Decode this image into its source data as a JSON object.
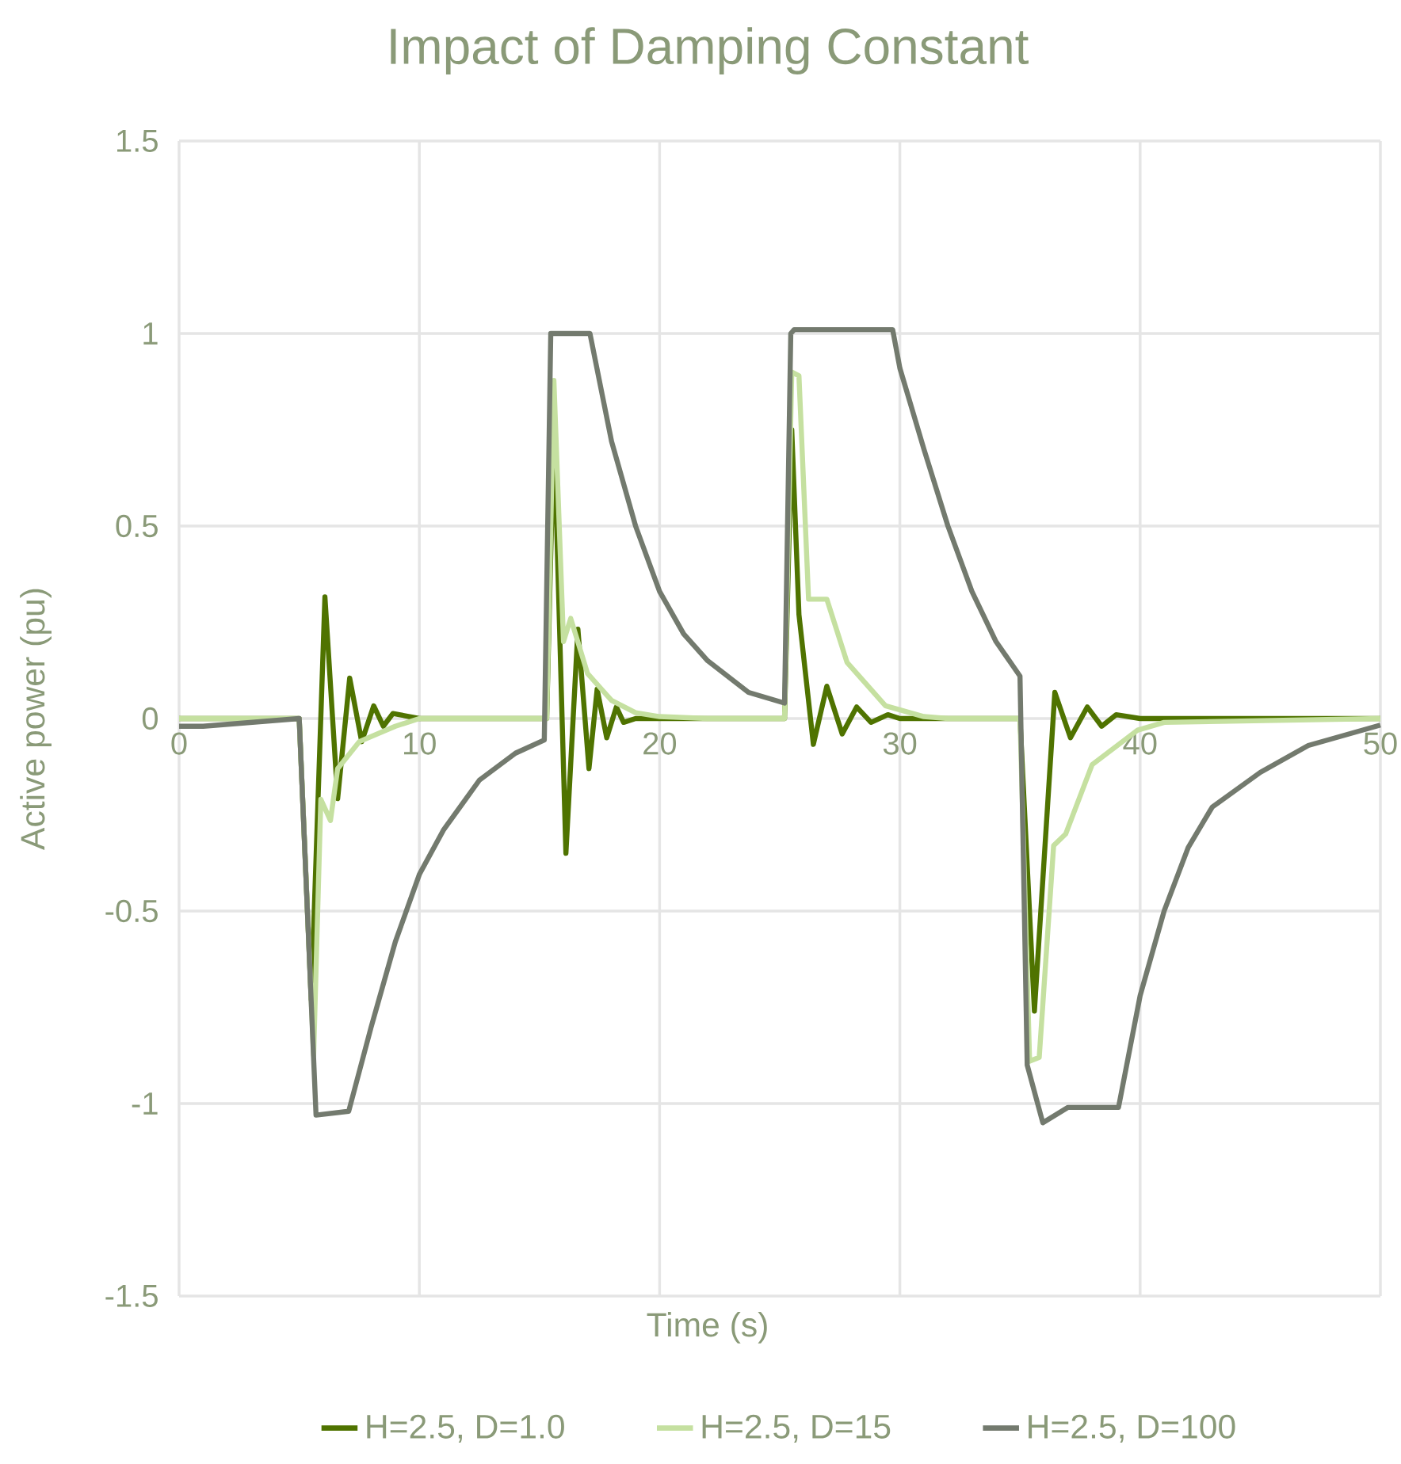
{
  "chart_data": {
    "type": "line",
    "title": "Impact of Damping Constant",
    "xlabel": "Time (s)",
    "ylabel": "Active power (pu)",
    "xlim": [
      0,
      50
    ],
    "ylim": [
      -1.5,
      1.5
    ],
    "xticks": [
      0,
      10,
      20,
      30,
      40,
      50
    ],
    "yticks": [
      -1.5,
      -1,
      -0.5,
      0,
      0.5,
      1,
      1.5
    ],
    "grid": true,
    "legend": "bottom",
    "marker": "none",
    "line_style": "solid",
    "series": [
      {
        "name": "H=2.5, D=1.0",
        "color": "#4f7300",
        "x": [
          0,
          5.0,
          5.5,
          6.07,
          6.6,
          7.1,
          7.6,
          8.1,
          8.5,
          8.9,
          10,
          15.3,
          15.6,
          16.1,
          16.6,
          17.06,
          17.4,
          17.8,
          18.2,
          18.5,
          19,
          25.2,
          25.5,
          25.8,
          26.4,
          26.96,
          27.6,
          28.2,
          28.8,
          29.5,
          30,
          35.0,
          35.6,
          36.45,
          37.1,
          37.8,
          38.4,
          39.0,
          40,
          50
        ],
        "values": [
          0,
          0,
          -0.73,
          0.316,
          -0.208,
          0.105,
          -0.06,
          0.033,
          -0.02,
          0.013,
          0,
          0,
          0.756,
          -0.35,
          0.232,
          -0.13,
          0.076,
          -0.05,
          0.03,
          -0.01,
          0,
          0,
          0.75,
          0.27,
          -0.067,
          0.084,
          -0.04,
          0.03,
          -0.01,
          0.01,
          0,
          0,
          -0.76,
          0.068,
          -0.05,
          0.03,
          -0.02,
          0.01,
          0,
          0
        ]
      },
      {
        "name": "H=2.5, D=15",
        "color": "#c5e0a0",
        "x": [
          0,
          5.0,
          5.6,
          5.9,
          6.3,
          6.6,
          7.5,
          9,
          10,
          15.3,
          15.6,
          16.0,
          16.3,
          17,
          18,
          19,
          20,
          22,
          25.2,
          25.5,
          25.8,
          26.2,
          26.96,
          27.8,
          29.4,
          31,
          32,
          35.0,
          35.4,
          35.8,
          36.4,
          36.9,
          38.0,
          39.9,
          41,
          50
        ],
        "values": [
          0,
          0,
          -0.875,
          -0.21,
          -0.265,
          -0.13,
          -0.06,
          -0.02,
          0,
          0,
          0.878,
          0.2,
          0.26,
          0.117,
          0.047,
          0.015,
          0.005,
          0,
          0,
          0.9,
          0.89,
          0.31,
          0.31,
          0.146,
          0.033,
          0.005,
          0,
          0,
          -0.89,
          -0.88,
          -0.33,
          -0.3,
          -0.12,
          -0.03,
          -0.01,
          0
        ]
      },
      {
        "name": "H=2.5, D=100",
        "color": "#737a6e",
        "x": [
          0,
          1,
          5.0,
          5.7,
          7.06,
          8,
          9,
          10,
          11,
          12.5,
          14,
          15.2,
          15.47,
          15.7,
          17.1,
          18,
          19,
          20,
          21,
          22,
          23.7,
          25.2,
          25.46,
          25.6,
          29.7,
          30,
          31,
          32,
          33,
          34,
          35.0,
          35.3,
          35.95,
          37,
          39.1,
          40,
          41,
          42,
          43,
          45,
          47,
          50
        ],
        "values": [
          -0.02,
          -0.02,
          0,
          -1.03,
          -1.02,
          -0.8,
          -0.58,
          -0.405,
          -0.29,
          -0.16,
          -0.09,
          -0.056,
          1.0,
          1.0,
          1.0,
          0.72,
          0.5,
          0.33,
          0.22,
          0.15,
          0.068,
          0.04,
          1.0,
          1.01,
          1.01,
          0.91,
          0.7,
          0.5,
          0.33,
          0.2,
          0.11,
          -0.9,
          -1.05,
          -1.01,
          -1.01,
          -0.72,
          -0.5,
          -0.335,
          -0.23,
          -0.14,
          -0.07,
          -0.017
        ]
      }
    ]
  }
}
